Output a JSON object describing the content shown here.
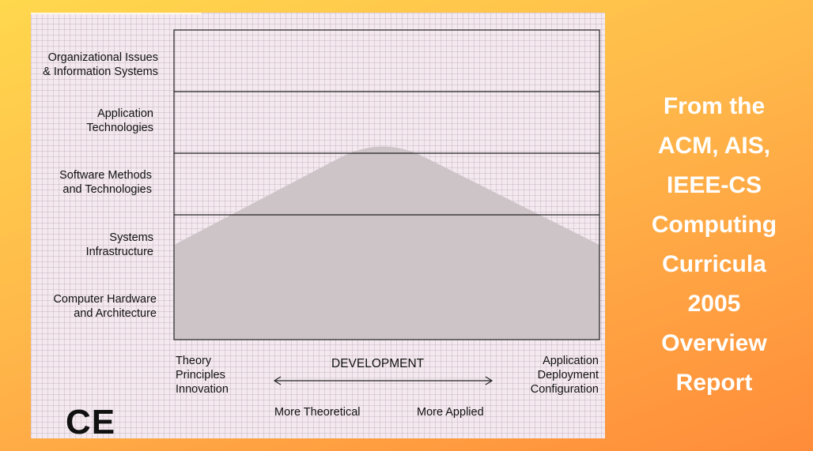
{
  "rows": [
    {
      "label": "Organizational Issues\n& Information Systems"
    },
    {
      "label": "Application\nTechnologies"
    },
    {
      "label": "Software Methods\nand Technologies"
    },
    {
      "label": "Systems\nInfrastructure"
    },
    {
      "label": "Computer Hardware\nand Architecture"
    }
  ],
  "axis": {
    "left_label": "Theory\nPrinciples\nInnovation",
    "center_label": "DEVELOPMENT",
    "right_label": "Application\nDeployment\nConfiguration",
    "left_sub": "More Theoretical",
    "right_sub": "More Applied"
  },
  "discipline": "CE",
  "side_text": "From the\nACM, AIS,\nIEEE-CS\nComputing\nCurricula\n2005\nOverview\nReport",
  "colors": {
    "background_start": "#ffd84d",
    "background_end": "#ff8c3a",
    "panel": "#f3e9ef",
    "shape_fill": "#cdc4c8",
    "side_text": "#ffffff"
  }
}
